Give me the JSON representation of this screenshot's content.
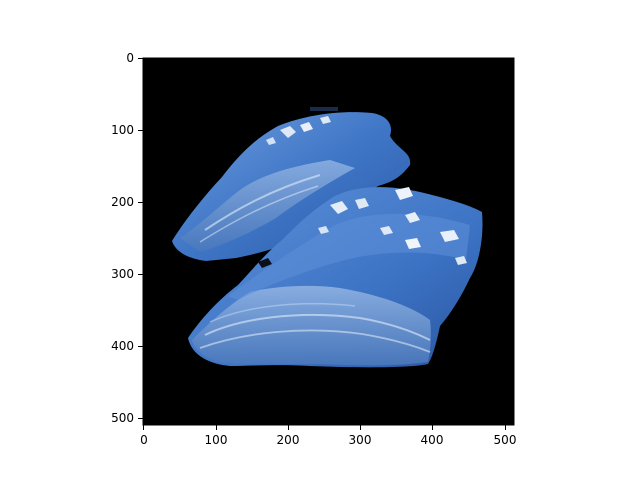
{
  "axes": {
    "x_ticks": [
      "0",
      "100",
      "200",
      "300",
      "400",
      "500"
    ],
    "y_ticks": [
      "0",
      "100",
      "200",
      "300",
      "400",
      "500"
    ],
    "x_range": [
      0,
      512
    ],
    "y_range": [
      0,
      512
    ]
  },
  "image": {
    "subject": "two pieces of layered pastry on a black background",
    "colors": {
      "background": "#000000",
      "pastry": "#3f78c8",
      "crumbs": "#dfe9f5"
    }
  }
}
